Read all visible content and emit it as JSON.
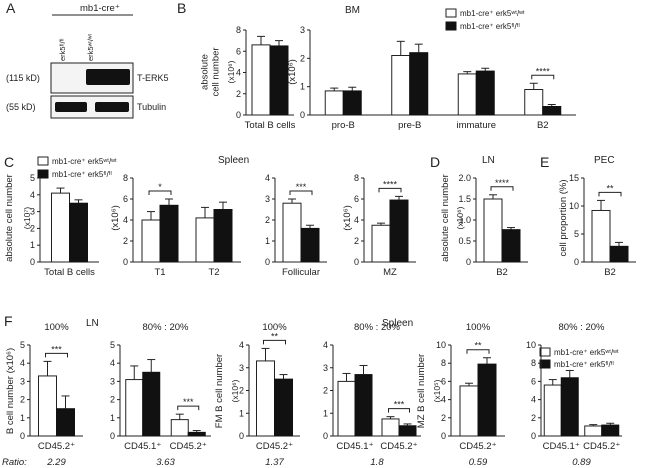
{
  "panel_letters": {
    "A": "A",
    "B": "B",
    "C": "C",
    "D": "D",
    "E": "E",
    "F": "F"
  },
  "legend": {
    "wt": "mb1-cre⁺ erk5ʷᵗ/ʷᵗ",
    "fl": "mb1-cre⁺ erk5ᶠˡ/ᶠˡ"
  },
  "colors": {
    "wt": "#ffffff",
    "fl": "#111111",
    "axis": "#222222"
  },
  "panel_a": {
    "header": "mb1-cre⁺",
    "lanes": [
      "erk5ᶠˡ/ᶠˡ",
      "erk5ʷᵗ/ʷᵗ"
    ],
    "blots": [
      {
        "kd": "(115 kD)",
        "name": "T-ERK5"
      },
      {
        "kd": "(55 kD)",
        "name": "Tubulin"
      }
    ]
  },
  "titles": {
    "bm": "BM",
    "spleen": "Spleen",
    "ln": "LN",
    "pec": "PEC",
    "f_ln": "LN",
    "f_spleen": "Spleen"
  },
  "ratio_label": "Ratio:",
  "chart_data": [
    {
      "id": "B1",
      "type": "bar",
      "ylabel": "absolute\ncell number",
      "unit": "(x10⁶)",
      "ylim": [
        0,
        8
      ],
      "yticks": [
        0,
        2,
        4,
        6,
        8
      ],
      "categories": [
        "Total B cells"
      ],
      "series": [
        {
          "name": "wt",
          "values": [
            6.6
          ],
          "errors": [
            0.8
          ]
        },
        {
          "name": "fl",
          "values": [
            6.5
          ],
          "errors": [
            0.5
          ]
        }
      ]
    },
    {
      "id": "B2",
      "type": "bar",
      "ylabel": "(x10⁶)",
      "ylim": [
        0,
        3
      ],
      "yticks": [
        0,
        1,
        2,
        3
      ],
      "categories": [
        "pro-B",
        "pre-B",
        "immature",
        "B2"
      ],
      "series": [
        {
          "name": "wt",
          "values": [
            0.85,
            2.1,
            1.45,
            0.9
          ],
          "errors": [
            0.1,
            0.5,
            0.08,
            0.22
          ]
        },
        {
          "name": "fl",
          "values": [
            0.85,
            2.2,
            1.55,
            0.3
          ],
          "errors": [
            0.13,
            0.3,
            0.1,
            0.07
          ]
        }
      ],
      "annotations": [
        {
          "category": "B2",
          "text": "****"
        }
      ]
    },
    {
      "id": "C1",
      "type": "bar",
      "ylabel": "absolute cell number",
      "unit": "(x10⁷)",
      "ylim": [
        0,
        5
      ],
      "yticks": [
        0,
        1,
        2,
        3,
        4,
        5
      ],
      "categories": [
        "Total B cells"
      ],
      "series": [
        {
          "name": "wt",
          "values": [
            4.1
          ],
          "errors": [
            0.3
          ]
        },
        {
          "name": "fl",
          "values": [
            3.5
          ],
          "errors": [
            0.2
          ]
        }
      ]
    },
    {
      "id": "C2",
      "type": "bar",
      "ylabel": "(x10⁶)",
      "ylim": [
        0,
        8
      ],
      "yticks": [
        0,
        2,
        4,
        6,
        8
      ],
      "categories": [
        "T1",
        "T2"
      ],
      "series": [
        {
          "name": "wt",
          "values": [
            4.0,
            4.2
          ],
          "errors": [
            0.8,
            1.0
          ]
        },
        {
          "name": "fl",
          "values": [
            5.4,
            5.0
          ],
          "errors": [
            0.6,
            0.7
          ]
        }
      ],
      "annotations": [
        {
          "category": "T1",
          "text": "*"
        }
      ]
    },
    {
      "id": "C3",
      "type": "bar",
      "ylabel": "",
      "ylim": [
        0,
        4
      ],
      "yticks": [
        0,
        1,
        2,
        3,
        4
      ],
      "categories": [
        "Follicular"
      ],
      "series": [
        {
          "name": "wt",
          "values": [
            2.8
          ],
          "errors": [
            0.2
          ]
        },
        {
          "name": "fl",
          "values": [
            1.6
          ],
          "errors": [
            0.15
          ]
        }
      ],
      "annotations": [
        {
          "category": "Follicular",
          "text": "***"
        }
      ]
    },
    {
      "id": "C4",
      "type": "bar",
      "ylabel": "(x10⁶)",
      "ylim": [
        0,
        8
      ],
      "yticks": [
        0,
        2,
        4,
        6,
        8
      ],
      "categories": [
        "MZ"
      ],
      "series": [
        {
          "name": "wt",
          "values": [
            3.5
          ],
          "errors": [
            0.2
          ]
        },
        {
          "name": "fl",
          "values": [
            5.9
          ],
          "errors": [
            0.35
          ]
        }
      ],
      "annotations": [
        {
          "category": "MZ",
          "text": "****"
        }
      ]
    },
    {
      "id": "D",
      "type": "bar",
      "ylabel": "absolute cell number",
      "unit": "(x10⁶)",
      "ylim": [
        0,
        2.0
      ],
      "yticks": [
        0,
        0.5,
        1.0,
        1.5,
        2.0
      ],
      "ytick_labels": [
        "0",
        "0.5",
        "1.0",
        "1.5",
        "2.0"
      ],
      "categories": [
        "B2"
      ],
      "series": [
        {
          "name": "wt",
          "values": [
            1.5
          ],
          "errors": [
            0.1
          ]
        },
        {
          "name": "fl",
          "values": [
            0.77
          ],
          "errors": [
            0.05
          ]
        }
      ],
      "annotations": [
        {
          "category": "B2",
          "text": "****"
        }
      ]
    },
    {
      "id": "E",
      "type": "bar",
      "ylabel": "cell proportion (%)",
      "ylim": [
        0,
        15
      ],
      "yticks": [
        0,
        5,
        10,
        15
      ],
      "categories": [
        "B2"
      ],
      "series": [
        {
          "name": "wt",
          "values": [
            9.2
          ],
          "errors": [
            1.8
          ]
        },
        {
          "name": "fl",
          "values": [
            2.8
          ],
          "errors": [
            0.7
          ]
        }
      ],
      "annotations": [
        {
          "category": "B2",
          "text": "**"
        }
      ]
    },
    {
      "id": "F1",
      "type": "bar",
      "header": "100%",
      "ylabel": "B cell number (x10⁶)",
      "ylim": [
        0,
        5
      ],
      "yticks": [
        0,
        1,
        2,
        3,
        4,
        5
      ],
      "categories": [
        "CD45.2⁺"
      ],
      "series": [
        {
          "name": "wt",
          "values": [
            3.3
          ],
          "errors": [
            0.8
          ]
        },
        {
          "name": "fl",
          "values": [
            1.5
          ],
          "errors": [
            0.7
          ]
        }
      ],
      "annotations": [
        {
          "category": "CD45.2⁺",
          "text": "***"
        }
      ],
      "ratio": "2.29"
    },
    {
      "id": "F2",
      "type": "bar",
      "header": "80% : 20%",
      "ylabel": "",
      "ylim": [
        0,
        5
      ],
      "yticks": [
        0,
        1,
        2,
        3,
        4,
        5
      ],
      "categories": [
        "CD45.1⁺",
        "CD45.2⁺"
      ],
      "series": [
        {
          "name": "wt",
          "values": [
            3.1,
            0.9
          ],
          "errors": [
            0.75,
            0.3
          ]
        },
        {
          "name": "fl",
          "values": [
            3.5,
            0.2
          ],
          "errors": [
            0.7,
            0.1
          ]
        }
      ],
      "annotations": [
        {
          "category": "CD45.2⁺",
          "text": "***"
        }
      ],
      "ratio": "3.63"
    },
    {
      "id": "F3",
      "type": "bar",
      "header": "100%",
      "ylabel": "FM B cell number",
      "unit": "(x10⁶)",
      "ylim": [
        0,
        4
      ],
      "yticks": [
        0,
        1,
        2,
        3,
        4
      ],
      "categories": [
        "CD45.2⁺"
      ],
      "series": [
        {
          "name": "wt",
          "values": [
            3.3
          ],
          "errors": [
            0.55
          ]
        },
        {
          "name": "fl",
          "values": [
            2.5
          ],
          "errors": [
            0.2
          ]
        }
      ],
      "annotations": [
        {
          "category": "CD45.2⁺",
          "text": "**"
        }
      ],
      "ratio": "1.37"
    },
    {
      "id": "F4",
      "type": "bar",
      "header": "80% : 20%",
      "ylabel": "",
      "ylim": [
        0,
        4
      ],
      "yticks": [
        0,
        1,
        2,
        3,
        4
      ],
      "categories": [
        "CD45.1⁺",
        "CD45.2⁺"
      ],
      "series": [
        {
          "name": "wt",
          "values": [
            2.4,
            0.75
          ],
          "errors": [
            0.35,
            0.1
          ]
        },
        {
          "name": "fl",
          "values": [
            2.7,
            0.45
          ],
          "errors": [
            0.4,
            0.08
          ]
        }
      ],
      "annotations": [
        {
          "category": "CD45.2⁺",
          "text": "***"
        }
      ],
      "ratio": "1.8"
    },
    {
      "id": "F5",
      "type": "bar",
      "header": "100%",
      "ylabel": "MZ B cell number",
      "unit": "(x10⁵)",
      "ylim": [
        0,
        10
      ],
      "yticks": [
        0,
        2,
        4,
        6,
        8,
        10
      ],
      "categories": [
        "CD45.2⁺"
      ],
      "series": [
        {
          "name": "wt",
          "values": [
            5.5
          ],
          "errors": [
            0.3
          ]
        },
        {
          "name": "fl",
          "values": [
            7.9
          ],
          "errors": [
            0.7
          ]
        }
      ],
      "annotations": [
        {
          "category": "CD45.2⁺",
          "text": "**"
        }
      ],
      "ratio": "0.59"
    },
    {
      "id": "F6",
      "type": "bar",
      "header": "80% : 20%",
      "ylabel": "",
      "ylim": [
        0,
        10
      ],
      "yticks": [
        0,
        2,
        4,
        6,
        8,
        10
      ],
      "categories": [
        "CD45.1⁺",
        "CD45.2⁺"
      ],
      "series": [
        {
          "name": "wt",
          "values": [
            5.6,
            1.1
          ],
          "errors": [
            0.6,
            0.15
          ]
        },
        {
          "name": "fl",
          "values": [
            6.4,
            1.2
          ],
          "errors": [
            0.8,
            0.2
          ]
        }
      ],
      "ratio": "0.89"
    }
  ]
}
